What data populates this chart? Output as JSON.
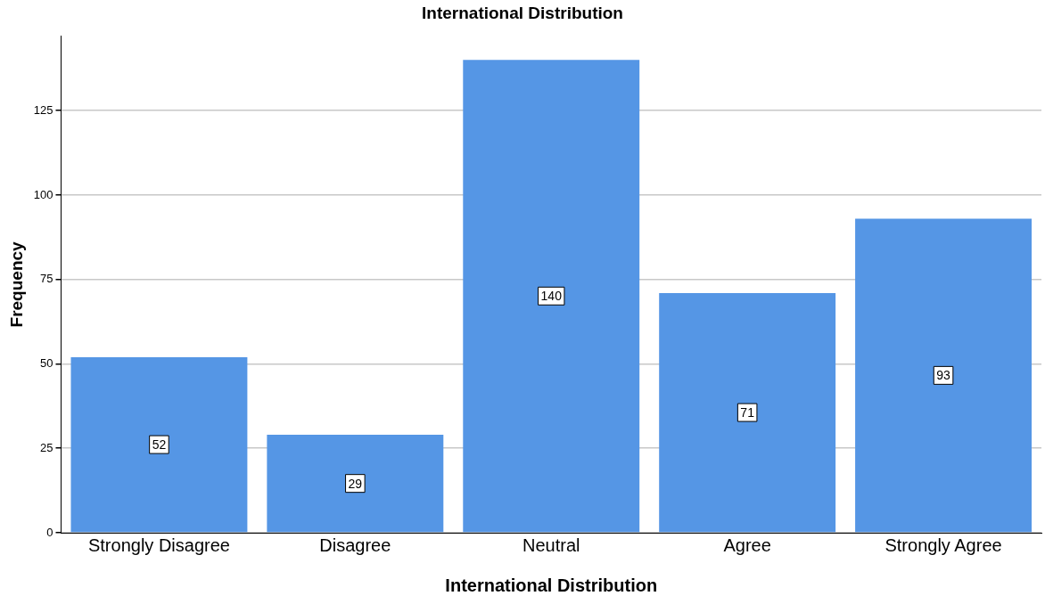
{
  "chart_data": {
    "type": "bar",
    "title": "International Distribution",
    "xlabel": "International Distribution",
    "ylabel": "Frequency",
    "categories": [
      "Strongly Disagree",
      "Disagree",
      "Neutral",
      "Agree",
      "Strongly Agree"
    ],
    "values": [
      52,
      29,
      140,
      71,
      93
    ],
    "color": "#5596e5",
    "ylim": [
      0,
      147
    ],
    "yticks": [
      0,
      25,
      50,
      75,
      100,
      125
    ],
    "grid": "y",
    "data_labels": true
  }
}
